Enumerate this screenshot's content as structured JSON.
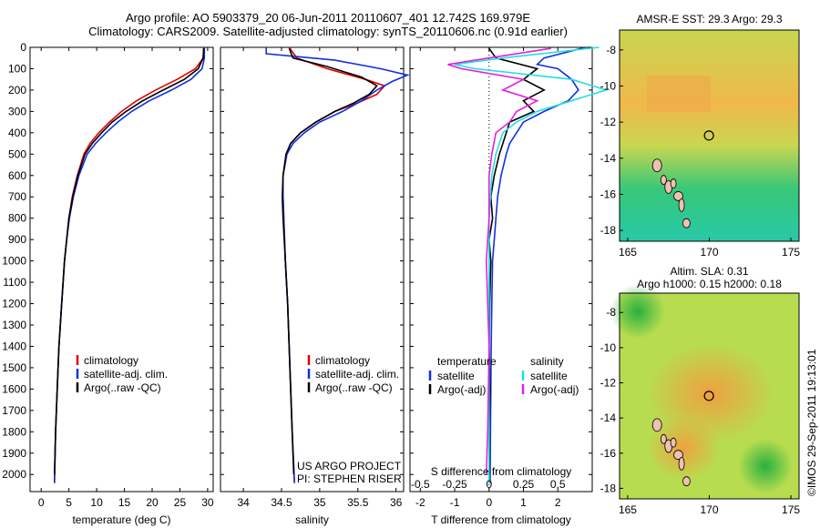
{
  "header": {
    "line1": "Argo profile: AO 5903379_20 06-Jun-2011 20110607_401 12.742S 169.979E",
    "line2": "Climatology: CARS2009. Satellite-adjusted climatology: synTS_20110606.nc (0.91d earlier)"
  },
  "colors": {
    "climatology": "#e00000",
    "satellite": "#1030e0",
    "argo": "#000000",
    "salinity_sat": "#20e0e0",
    "salinity_argo": "#e020e0"
  },
  "depth_axis": {
    "ticks": [
      0,
      100,
      200,
      300,
      400,
      500,
      600,
      700,
      800,
      900,
      1000,
      1100,
      1200,
      1300,
      1400,
      1500,
      1600,
      1700,
      1800,
      1900,
      2000
    ],
    "ylim": [
      0,
      2080
    ],
    "inverted": true
  },
  "chart_data": [
    {
      "type": "line",
      "xlabel": "temperature (deg C)",
      "xticks": [
        "0",
        "5",
        "10",
        "15",
        "20",
        "25",
        "30"
      ],
      "xlim": [
        -2,
        31
      ],
      "legend": [
        "climatology",
        "satellite-adj. clim.",
        "Argo(..raw -QC)"
      ],
      "series": [
        {
          "name": "climatology",
          "depth": [
            0,
            50,
            100,
            150,
            200,
            250,
            300,
            350,
            400,
            450,
            500,
            600,
            700,
            800,
            900,
            1000,
            1200,
            1400,
            1600,
            1800,
            2040
          ],
          "values": [
            29.3,
            29.2,
            27.8,
            24.5,
            20.6,
            17.2,
            14.5,
            12.3,
            10.4,
            8.8,
            7.7,
            6.5,
            5.6,
            5.0,
            4.6,
            4.2,
            3.7,
            3.2,
            2.9,
            2.6,
            2.4
          ]
        },
        {
          "name": "satellite-adj. clim.",
          "depth": [
            0,
            50,
            100,
            150,
            200,
            250,
            300,
            350,
            400,
            450,
            500,
            600,
            700,
            800,
            900,
            1000,
            1200,
            1400,
            1600,
            1800,
            2040
          ],
          "values": [
            29.4,
            29.4,
            29.0,
            27.0,
            23.5,
            19.5,
            16.3,
            13.8,
            11.7,
            9.8,
            8.3,
            6.8,
            5.8,
            5.1,
            4.6,
            4.2,
            3.7,
            3.2,
            2.9,
            2.6,
            2.4
          ]
        },
        {
          "name": "Argo(..raw -QC)",
          "depth": [
            5,
            50,
            100,
            150,
            200,
            250,
            300,
            350,
            400,
            450,
            500,
            600,
            700,
            800,
            900,
            1000,
            1200,
            1400,
            1600,
            1800,
            2000
          ],
          "values": [
            29.3,
            29.2,
            28.3,
            25.8,
            22.0,
            18.3,
            15.3,
            12.8,
            10.9,
            9.2,
            7.9,
            6.6,
            5.7,
            5.0,
            4.6,
            4.2,
            3.7,
            3.2,
            2.9,
            2.6,
            2.4
          ]
        }
      ]
    },
    {
      "type": "line",
      "xlabel": "salinity",
      "xticks": [
        "34",
        "34.5",
        "35",
        "35.5",
        "36"
      ],
      "xlim": [
        33.7,
        36.1
      ],
      "legend": [
        "climatology",
        "satellite-adj. clim.",
        "Argo(..raw -QC)"
      ],
      "annotation": [
        "US ARGO PROJECT",
        "PI: STEPHEN RISER"
      ],
      "series": [
        {
          "name": "climatology",
          "depth": [
            0,
            50,
            100,
            150,
            180,
            220,
            260,
            300,
            350,
            400,
            450,
            500,
            600,
            700,
            800,
            1000,
            1200,
            1500,
            1800,
            2040
          ],
          "values": [
            34.6,
            34.7,
            35.1,
            35.6,
            35.85,
            35.75,
            35.5,
            35.2,
            34.95,
            34.75,
            34.62,
            34.56,
            34.52,
            34.52,
            34.53,
            34.55,
            34.58,
            34.61,
            34.64,
            34.67
          ]
        },
        {
          "name": "satellite-adj. clim.",
          "depth": [
            0,
            30,
            60,
            100,
            130,
            160,
            200,
            250,
            300,
            350,
            400,
            450,
            500,
            600,
            700,
            800,
            1000,
            1200,
            1500,
            1800,
            2040
          ],
          "values": [
            34.3,
            34.3,
            35.2,
            35.8,
            36.15,
            35.95,
            35.75,
            35.55,
            35.3,
            35.0,
            34.8,
            34.65,
            34.57,
            34.52,
            34.52,
            34.53,
            34.55,
            34.58,
            34.61,
            34.64,
            34.67
          ]
        },
        {
          "name": "Argo(..raw -QC)",
          "depth": [
            5,
            50,
            90,
            140,
            180,
            220,
            260,
            300,
            350,
            400,
            450,
            500,
            600,
            700,
            800,
            1000,
            1200,
            1500,
            1800,
            2000
          ],
          "values": [
            34.6,
            34.65,
            35.1,
            35.55,
            35.75,
            35.65,
            35.45,
            35.2,
            34.95,
            34.75,
            34.62,
            34.56,
            34.52,
            34.51,
            34.52,
            34.55,
            34.58,
            34.61,
            34.64,
            34.66
          ]
        }
      ]
    },
    {
      "type": "line",
      "xlabel": "T difference from climatology",
      "xticks": [
        "-2",
        "-1",
        "0",
        "1",
        "2"
      ],
      "xlim": [
        -2.3,
        3.0
      ],
      "top_xlabel": "S difference from climatology",
      "top_xticks": [
        "-0.5",
        "-0.25",
        "0",
        "0.25",
        "0.5"
      ],
      "legend_titles": [
        "temperature",
        "salinity"
      ],
      "legend": [
        "satellite",
        "Argo(-adj)",
        "satellite",
        "Argo(-adj)"
      ],
      "series": [
        {
          "name": "satellite",
          "depth": [
            0,
            50,
            80,
            100,
            150,
            200,
            250,
            300,
            350,
            400,
            450,
            500,
            600,
            700,
            800,
            900,
            1000,
            1200,
            1400,
            1600,
            1800,
            2040
          ],
          "values": [
            2.8,
            1.6,
            1.4,
            2.0,
            2.4,
            2.6,
            2.3,
            1.6,
            1.0,
            0.8,
            0.6,
            0.5,
            0.35,
            0.25,
            0.2,
            0.15,
            0.1,
            0.08,
            0.06,
            0.05,
            0.04,
            0.03
          ]
        },
        {
          "name": "Argo(-adj)",
          "depth": [
            5,
            50,
            100,
            150,
            200,
            250,
            300,
            350,
            400,
            450,
            500,
            600,
            700,
            800,
            900,
            1000,
            1200,
            1400,
            1600,
            1800,
            2000
          ],
          "values": [
            0.0,
            0.2,
            1.4,
            1.0,
            1.6,
            1.0,
            1.3,
            0.6,
            0.5,
            0.4,
            0.3,
            0.15,
            0.05,
            0.1,
            0.0,
            0.05,
            0.02,
            0.0,
            0.03,
            0.0,
            0.02
          ]
        },
        {
          "name": "satellite",
          "depth": [
            0,
            50,
            80,
            100,
            150,
            200,
            250,
            300,
            350,
            400,
            500,
            600,
            800,
            1000,
            1400,
            1800,
            2040
          ],
          "values": [
            0.8,
            0.1,
            -0.25,
            -0.1,
            0.6,
            0.85,
            0.6,
            0.35,
            0.2,
            0.1,
            0.05,
            0.02,
            0.0,
            0.0,
            0.0,
            0.0,
            0.0
          ]
        },
        {
          "name": "Argo(-adj)",
          "depth": [
            5,
            50,
            80,
            100,
            150,
            200,
            250,
            300,
            350,
            400,
            500,
            600,
            800,
            1000,
            1400,
            1800,
            2000
          ],
          "values": [
            0.45,
            0.0,
            -0.3,
            -0.2,
            0.25,
            0.1,
            0.35,
            0.2,
            0.15,
            0.05,
            0.02,
            0.0,
            0.0,
            -0.02,
            0.0,
            -0.01,
            -0.02
          ]
        }
      ]
    },
    {
      "type": "heatmap",
      "title": "AMSR-E SST: 29.3 Argo: 29.3",
      "xticks": [
        "165",
        "170",
        "175"
      ],
      "yticks": [
        "-8",
        "-10",
        "-12",
        "-14",
        "-16",
        "-18"
      ],
      "xlim": [
        164.5,
        175.5
      ],
      "ylim": [
        -18.6,
        -6.9
      ],
      "marker": [
        169.979,
        -12.742
      ]
    },
    {
      "type": "heatmap",
      "title": "Altim. SLA: 0.31",
      "subtitle": "Argo h1000: 0.15 h2000: 0.18",
      "xticks": [
        "165",
        "170",
        "175"
      ],
      "yticks": [
        "-8",
        "-10",
        "-12",
        "-14",
        "-16",
        "-18"
      ],
      "xlim": [
        164.5,
        175.5
      ],
      "ylim": [
        -18.6,
        -6.9
      ],
      "marker": [
        169.979,
        -12.742
      ]
    }
  ],
  "footer": {
    "stamp": "©IMOS 29-Sep-2011 19:13:01"
  }
}
